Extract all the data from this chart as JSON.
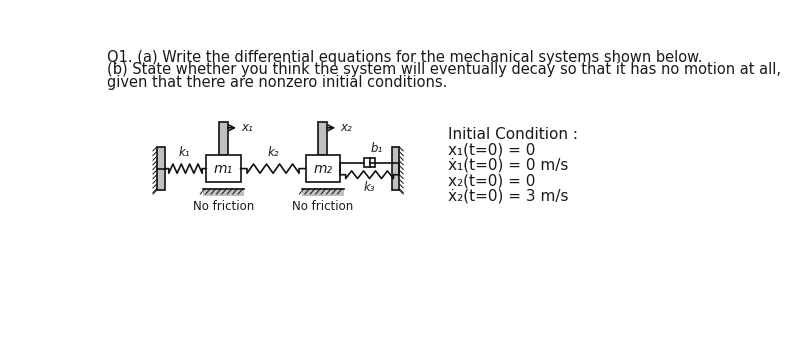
{
  "title_line1": "Q1. (a) Write the differential equations for the mechanical systems shown below.",
  "title_line2": "(b) State whether you think the system will eventually decay so that it has no motion at all,",
  "title_line3": "given that there are nonzero initial conditions.",
  "ic_title": "Initial Condition :",
  "ic1": "x₁(t=0) = 0",
  "ic2": "ẋ₁(t=0) = 0 m/s",
  "ic3": "x₂(t=0) = 0",
  "ic4": "ẋ₂(t=0) = 3 m/s",
  "no_friction": "No friction",
  "label_k1": "k₁",
  "label_k2": "k₂",
  "label_k3": "k₃",
  "label_m1": "m₁",
  "label_m2": "m₂",
  "label_b1": "b₁",
  "label_x1": "x₁",
  "label_x2": "x₂",
  "bg_color": "#ffffff",
  "text_color": "#1a1a1a",
  "wall_color": "#c0c0c0",
  "body_color": "#f0f0f0",
  "line_color": "#111111",
  "font_size_text": 10.5,
  "font_size_label": 8.5,
  "font_size_ic": 11
}
